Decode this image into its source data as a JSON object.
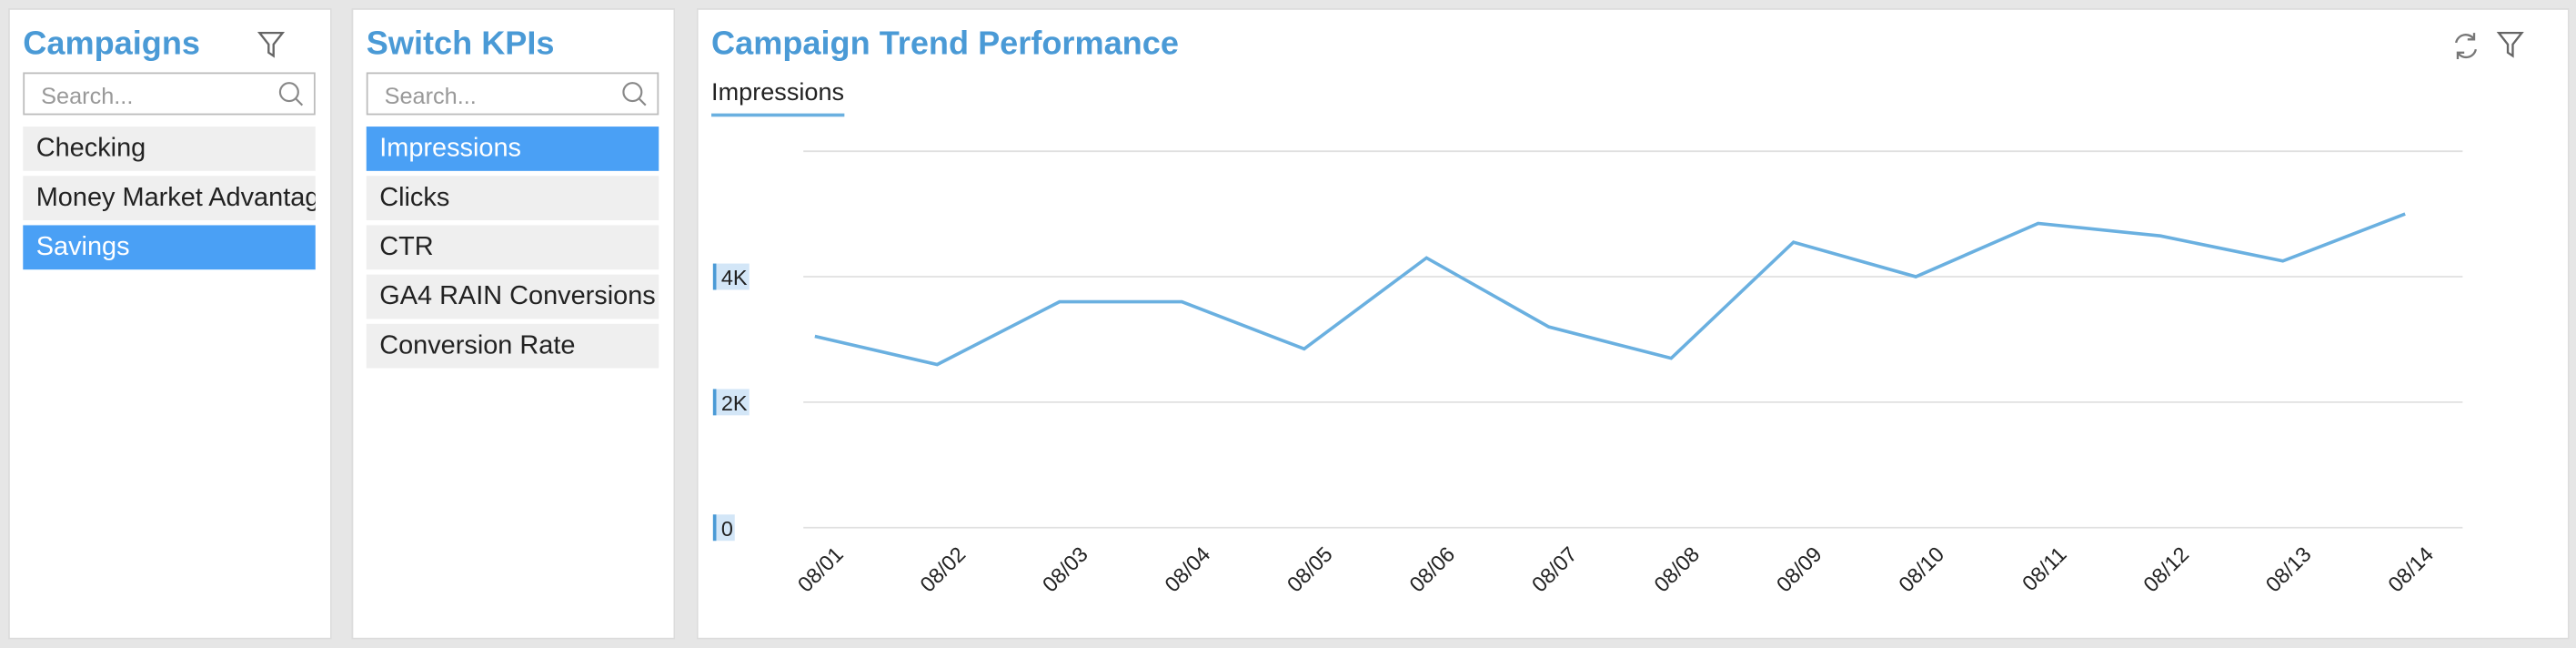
{
  "campaigns": {
    "title": "Campaigns",
    "search_placeholder": "Search...",
    "items": [
      "Checking",
      "Money Market Advantag",
      "Savings"
    ],
    "selected": 2
  },
  "kpis": {
    "title": "Switch KPIs",
    "search_placeholder": "Search...",
    "items": [
      "Impressions",
      "Clicks",
      "CTR",
      "GA4 RAIN Conversions",
      "Conversion Rate"
    ],
    "selected": 0
  },
  "chart_tab": "Impressions",
  "chart_data": {
    "type": "line",
    "title": "Campaign Trend Performance",
    "categories": [
      "08/01",
      "08/02",
      "08/03",
      "08/04",
      "08/05",
      "08/06",
      "08/07",
      "08/08",
      "08/09",
      "08/10",
      "08/11",
      "08/12",
      "08/13",
      "08/14"
    ],
    "series": [
      {
        "name": "Impressions",
        "color": "#6ab0e0",
        "values": [
          3050,
          2600,
          3600,
          3600,
          2850,
          4300,
          3200,
          2700,
          4550,
          4000,
          4850,
          4650,
          4250,
          5000
        ]
      }
    ],
    "ylim": [
      0,
      6000
    ],
    "yticks": [
      0,
      {
        "value": 2000,
        "label": "2K"
      },
      {
        "value": 4000,
        "label": "4K"
      }
    ],
    "grid": true
  }
}
